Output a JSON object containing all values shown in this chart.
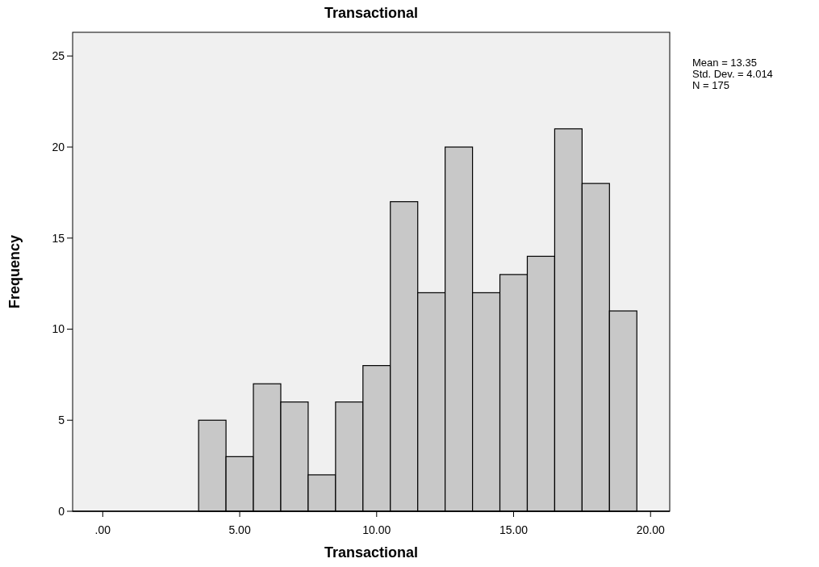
{
  "chart_data": {
    "type": "histogram",
    "title": "Transactional",
    "xlabel": "Transactional",
    "ylabel": "Frequency",
    "bins": [
      3.5,
      4.5,
      5.5,
      6.5,
      7.5,
      8.5,
      9.5,
      10.5,
      11.5,
      12.5,
      13.5,
      14.5,
      15.5,
      16.5,
      17.5,
      18.5,
      19.5
    ],
    "values": [
      5,
      3,
      7,
      6,
      2,
      6,
      8,
      17,
      12,
      20,
      12,
      13,
      14,
      21,
      18,
      11
    ],
    "color": "#c8c8c8",
    "xlim": [
      -1.1,
      20.7
    ],
    "xticks": [
      {
        "value": 0,
        "label": ".00"
      },
      {
        "value": 5,
        "label": "5.00"
      },
      {
        "value": 10,
        "label": "10.00"
      },
      {
        "value": 15,
        "label": "15.00"
      },
      {
        "value": 20,
        "label": "20.00"
      }
    ],
    "ylim": [
      0,
      26.3
    ],
    "yticks": [
      0,
      5,
      10,
      15,
      20,
      25
    ],
    "annotations": [
      "Mean = 13.35",
      "Std. Dev. = 4.014",
      "N = 175"
    ]
  }
}
